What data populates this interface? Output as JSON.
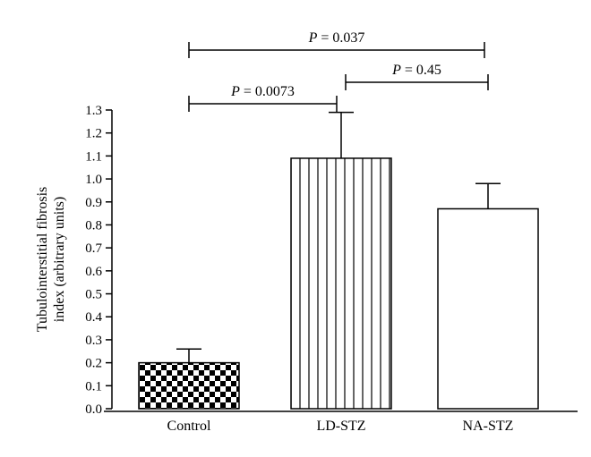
{
  "chart_data": {
    "type": "bar",
    "categories": [
      "Control",
      "LD-STZ",
      "NA-STZ"
    ],
    "values": [
      0.2,
      1.09,
      0.87
    ],
    "errors": [
      0.06,
      0.2,
      0.11
    ],
    "patterns": [
      "checkerboard",
      "vertical-stripes",
      "none"
    ],
    "ylabel_lines": [
      "Tubulointerstitial fibrosis",
      "index (arbitrary units)"
    ],
    "xlabel": "",
    "ylim": [
      0,
      1.3
    ],
    "yticks": [
      "0.0",
      "0.1",
      "0.2",
      "0.3",
      "0.4",
      "0.5",
      "0.6",
      "0.7",
      "0.8",
      "0.9",
      "1.0",
      "1.1",
      "1.2",
      "1.3"
    ],
    "grid": false,
    "comparisons": [
      {
        "from": 0,
        "to": 1,
        "label_prefix": "P",
        "label_value": " = 0.0073"
      },
      {
        "from": 1,
        "to": 2,
        "label_prefix": "P",
        "label_value": " = 0.45"
      },
      {
        "from": 0,
        "to": 2,
        "label_prefix": "P",
        "label_value": " = 0.037"
      }
    ]
  }
}
